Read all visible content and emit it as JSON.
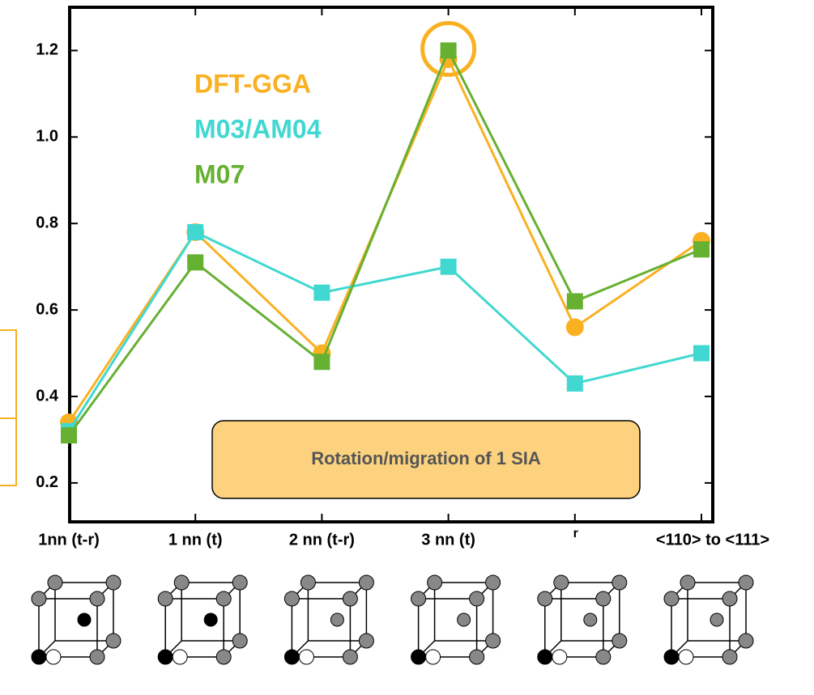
{
  "chart_data": {
    "type": "line",
    "categories": [
      "1nn (t-r)",
      "1 nn  (t)",
      "2 nn (t-r)",
      "3 nn (t)",
      "r",
      "<110> to <111>"
    ],
    "series": [
      {
        "name": "DFT-GGA",
        "color": "#f9b122",
        "marker": "circle",
        "values": [
          0.34,
          0.78,
          0.5,
          1.18,
          0.56,
          0.76
        ]
      },
      {
        "name": "M03/AM04",
        "color": "#40d8d0",
        "marker": "square",
        "values": [
          0.32,
          0.78,
          0.64,
          0.7,
          0.43,
          0.5
        ]
      },
      {
        "name": "M07",
        "color": "#66b032",
        "marker": "square",
        "values": [
          0.31,
          0.71,
          0.48,
          1.2,
          0.62,
          0.74
        ]
      }
    ],
    "ylim": [
      0.11,
      1.3
    ],
    "yticks": [
      0.2,
      0.4,
      0.6,
      0.8,
      {
        "value": 1,
        "label": "1.0"
      },
      1.2
    ],
    "annotation": "Rotation/migration of 1 SIA",
    "grid": false
  }
}
